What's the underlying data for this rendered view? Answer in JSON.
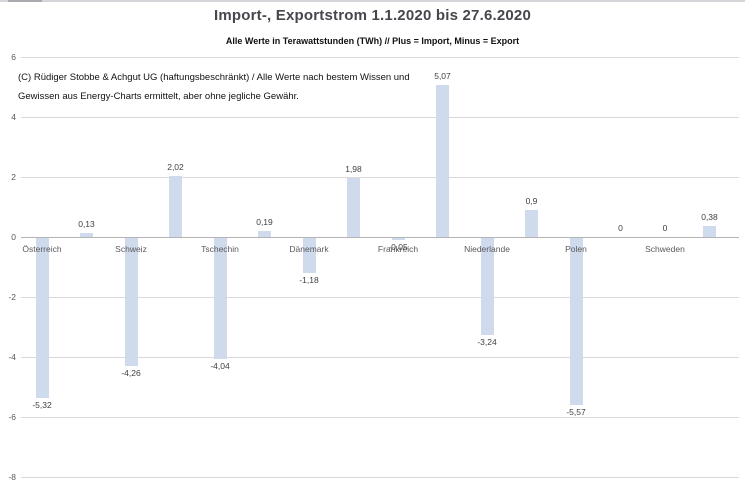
{
  "title": "Import-, Exportstrom 1.1.2020 bis 27.6.2020",
  "subtitle": "Alle Werte in Terawattstunden (TWh) // Plus = Import, Minus = Export",
  "annotation": {
    "line1": "(C) Rüdiger Stobbe & Achgut UG (haftungsbeschränkt) / Alle Werte nach bestem Wissen und",
    "line2": "Gewissen aus Energy-Charts ermittelt, aber ohne jegliche Gewähr."
  },
  "colors": {
    "bar": "#cfdaed",
    "gridline": "#d9d9d9",
    "zero_line": "#b3b3b3",
    "axis_text": "#595959",
    "value_text": "#3f3f3f"
  },
  "chart_data": {
    "type": "bar",
    "title": "Import-, Exportstrom 1.1.2020 bis 27.6.2020",
    "subtitle": "Alle Werte in Terawattstunden (TWh) // Plus = Import, Minus = Export",
    "unit": "TWh",
    "categories": [
      "Österreich",
      "Schweiz",
      "Tschechin",
      "Dänemark",
      "Frankreich",
      "Niederlande",
      "Polen",
      "Schweden"
    ],
    "series": [
      {
        "name": "Export (Minus)",
        "values": [
          -5.32,
          -4.26,
          -4.04,
          -1.18,
          -0.05,
          -3.24,
          -5.57,
          0
        ],
        "labels": [
          "-5,32",
          "-4,26",
          "-4,04",
          "-1,18",
          "-0,05",
          "-3,24",
          "-5,57",
          "0"
        ]
      },
      {
        "name": "Import (Plus)",
        "values": [
          0.13,
          2.02,
          0.19,
          1.98,
          5.07,
          0.9,
          0,
          0.38
        ],
        "labels": [
          "0,13",
          "2,02",
          "0,19",
          "1,98",
          "5,07",
          "0,9",
          "0",
          "0,38"
        ]
      }
    ],
    "ylim": [
      -8,
      6
    ],
    "yticks": [
      6,
      4,
      2,
      0,
      -2,
      -4,
      -6,
      -8
    ],
    "grid": "horizontal",
    "legend": "none",
    "layout_note": "16 alternating export/import bars; country label under each export bar"
  }
}
